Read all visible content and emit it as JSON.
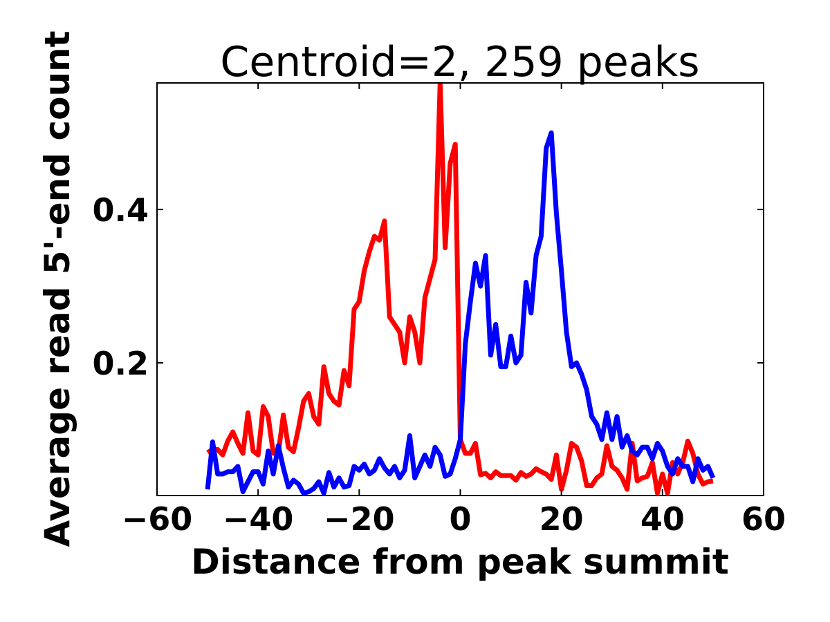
{
  "chart_data": {
    "type": "line",
    "title": "Centroid=2, 259 peaks",
    "xlabel": "Distance from peak summit",
    "ylabel": "Average read 5'-end count",
    "xlim": [
      -60,
      60
    ],
    "ylim": [
      0.027,
      0.565
    ],
    "xticks": [
      -60,
      -40,
      -20,
      0,
      20,
      40,
      60
    ],
    "xtick_labels": [
      "−60",
      "−40",
      "−20",
      "0",
      "20",
      "40",
      "60"
    ],
    "yticks": [
      0.2,
      0.4
    ],
    "ytick_labels": [
      "0.2",
      "0.4"
    ],
    "grid": false,
    "legend": "none",
    "x": [
      -50,
      -49,
      -48,
      -47,
      -46,
      -45,
      -44,
      -43,
      -42,
      -41,
      -40,
      -39,
      -38,
      -37,
      -36,
      -35,
      -34,
      -33,
      -32,
      -31,
      -30,
      -29,
      -28,
      -27,
      -26,
      -25,
      -24,
      -23,
      -22,
      -21,
      -20,
      -19,
      -18,
      -17,
      -16,
      -15,
      -14,
      -13,
      -12,
      -11,
      -10,
      -9,
      -8,
      -7,
      -6,
      -5,
      -4,
      -3,
      -2,
      -1,
      0,
      1,
      2,
      3,
      4,
      5,
      6,
      7,
      8,
      9,
      10,
      11,
      12,
      13,
      14,
      15,
      16,
      17,
      18,
      19,
      20,
      21,
      22,
      23,
      24,
      25,
      26,
      27,
      28,
      29,
      30,
      31,
      32,
      33,
      34,
      35,
      36,
      37,
      38,
      39,
      40,
      41,
      42,
      43,
      44,
      45,
      46,
      47,
      48,
      49,
      50
    ],
    "series": [
      {
        "color": "#ff0000",
        "values": [
          0.083,
          0.087,
          0.087,
          0.08,
          0.098,
          0.11,
          0.095,
          0.082,
          0.135,
          0.085,
          0.08,
          0.143,
          0.13,
          0.082,
          0.083,
          0.132,
          0.09,
          0.084,
          0.115,
          0.15,
          0.16,
          0.13,
          0.12,
          0.195,
          0.16,
          0.15,
          0.145,
          0.19,
          0.17,
          0.27,
          0.28,
          0.32,
          0.345,
          0.365,
          0.36,
          0.385,
          0.26,
          0.25,
          0.24,
          0.2,
          0.26,
          0.24,
          0.2,
          0.285,
          0.31,
          0.335,
          0.565,
          0.35,
          0.46,
          0.485,
          0.1,
          0.082,
          0.082,
          0.095,
          0.054,
          0.056,
          0.05,
          0.058,
          0.053,
          0.053,
          0.053,
          0.047,
          0.057,
          0.052,
          0.055,
          0.062,
          0.058,
          0.055,
          0.048,
          0.08,
          0.035,
          0.06,
          0.095,
          0.09,
          0.072,
          0.04,
          0.04,
          0.05,
          0.055,
          0.092,
          0.065,
          0.06,
          0.05,
          0.035,
          0.095,
          0.046,
          0.05,
          0.052,
          0.07,
          0.03,
          0.055,
          0.03,
          0.07,
          0.055,
          0.07,
          0.098,
          0.082,
          0.055,
          0.042,
          0.045,
          0.046
        ]
      },
      {
        "color": "#0000ff",
        "values": [
          0.035,
          0.097,
          0.055,
          0.055,
          0.058,
          0.058,
          0.065,
          0.032,
          0.045,
          0.058,
          0.058,
          0.042,
          0.085,
          0.055,
          0.092,
          0.063,
          0.038,
          0.047,
          0.042,
          0.03,
          0.032,
          0.036,
          0.045,
          0.03,
          0.057,
          0.038,
          0.05,
          0.038,
          0.04,
          0.065,
          0.06,
          0.068,
          0.055,
          0.06,
          0.075,
          0.063,
          0.055,
          0.065,
          0.05,
          0.06,
          0.105,
          0.05,
          0.065,
          0.08,
          0.065,
          0.09,
          0.08,
          0.052,
          0.055,
          0.075,
          0.1,
          0.225,
          0.28,
          0.33,
          0.3,
          0.34,
          0.21,
          0.25,
          0.195,
          0.195,
          0.235,
          0.2,
          0.21,
          0.305,
          0.265,
          0.34,
          0.365,
          0.48,
          0.5,
          0.395,
          0.32,
          0.24,
          0.195,
          0.2,
          0.185,
          0.165,
          0.13,
          0.12,
          0.1,
          0.135,
          0.1,
          0.13,
          0.09,
          0.105,
          0.085,
          0.08,
          0.09,
          0.09,
          0.075,
          0.095,
          0.085,
          0.065,
          0.055,
          0.075,
          0.065,
          0.065,
          0.045,
          0.075,
          0.06,
          0.065,
          0.05
        ]
      }
    ]
  }
}
